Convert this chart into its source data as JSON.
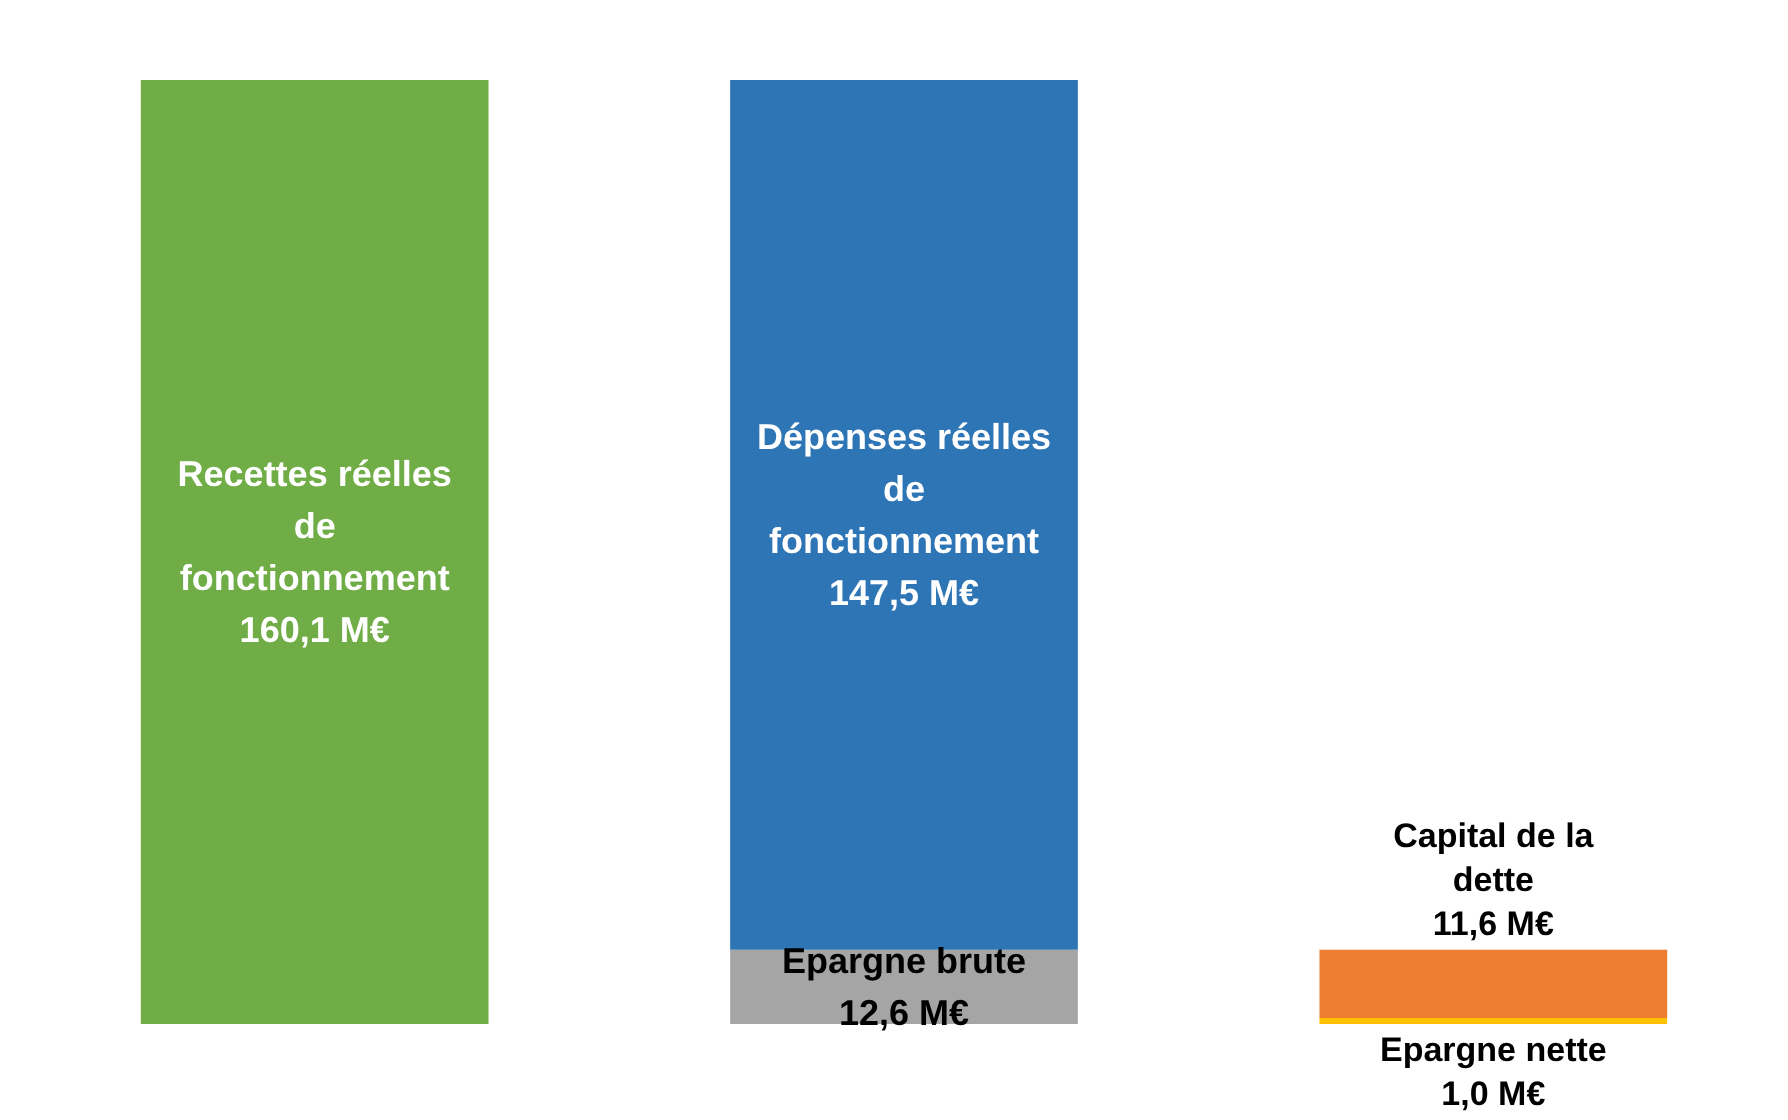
{
  "chart_data": {
    "type": "bar",
    "stacked": true,
    "categories": [
      null,
      null,
      null
    ],
    "series": [
      {
        "colors": [
          "#70ad47",
          "#a5a5a5",
          "#ffc000"
        ],
        "values": [
          160.1,
          12.6,
          1.0
        ],
        "value_labels": [
          "Recettes réelles\nde\nfonctionnement\n160,1 M€",
          "Epargne brute\n12,6 M€",
          "Epargne nette\n1,0 M€"
        ]
      },
      {
        "colors": [
          null,
          "#2e75b6",
          "#ed7d31"
        ],
        "values": [
          null,
          147.5,
          11.6
        ],
        "value_labels": [
          null,
          "Dépenses réelles\nde\nfonctionnement\n147,5 M€",
          "Capital de la\ndette\n11,6 M€"
        ]
      }
    ]
  }
}
